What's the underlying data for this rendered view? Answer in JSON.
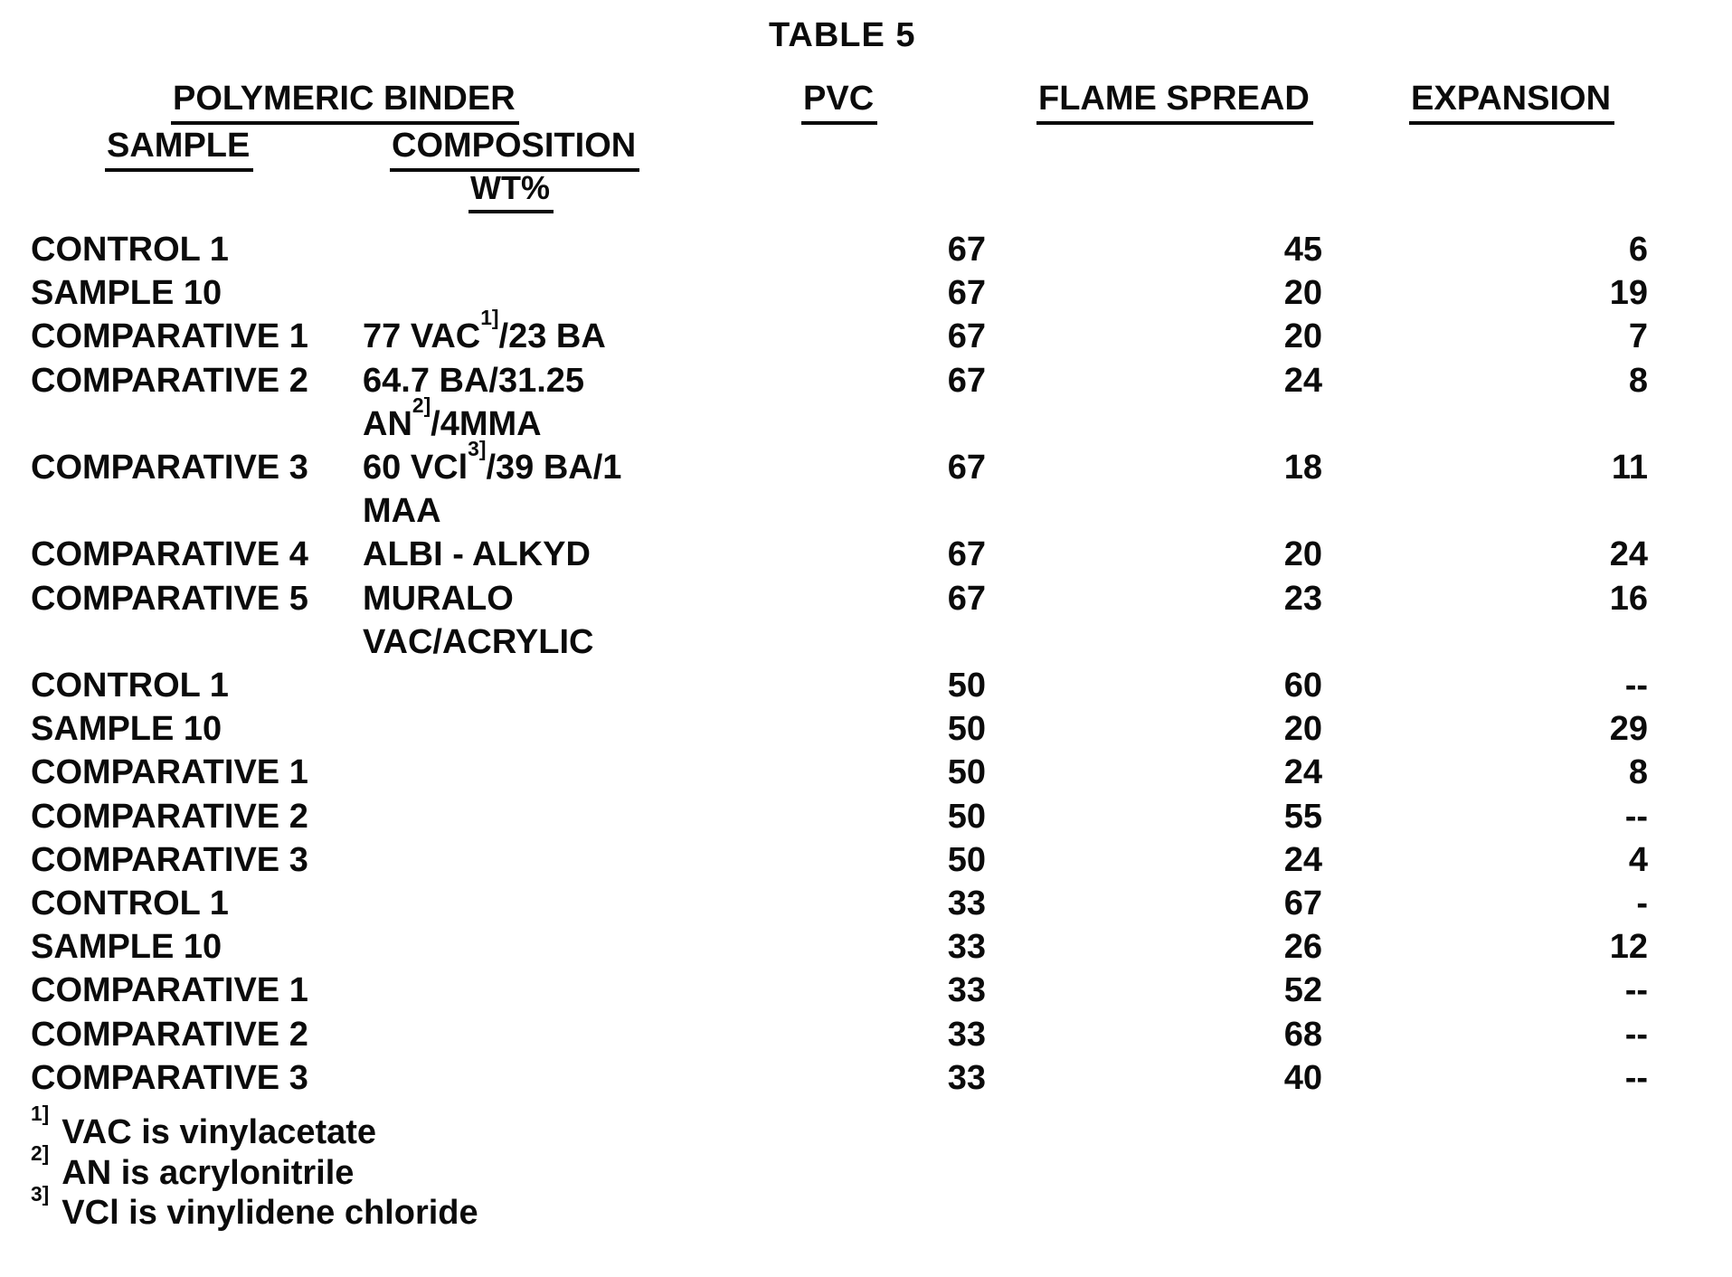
{
  "title": "TABLE 5",
  "table": {
    "group_header": "POLYMERIC BINDER",
    "columns": {
      "sample": "SAMPLE",
      "composition": "COMPOSITION",
      "composition_unit": "WT%",
      "pvc": "PVC",
      "flame_spread": "FLAME SPREAD",
      "expansion": "EXPANSION"
    },
    "rows": [
      {
        "sample": "CONTROL 1",
        "composition": [],
        "pvc": "67",
        "flame_spread": "45",
        "expansion": "6"
      },
      {
        "sample": "SAMPLE 10",
        "composition": [],
        "pvc": "67",
        "flame_spread": "20",
        "expansion": "19"
      },
      {
        "sample": "COMPARATIVE 1",
        "composition": [
          [
            {
              "text": "77 VAC"
            },
            {
              "sup": "1]"
            },
            {
              "text": "/23 BA"
            }
          ]
        ],
        "pvc": "67",
        "flame_spread": "20",
        "expansion": "7"
      },
      {
        "sample": "COMPARATIVE 2",
        "composition": [
          [
            {
              "text": "64.7 BA/31.25"
            }
          ],
          [
            {
              "text": "AN"
            },
            {
              "sup": "2]"
            },
            {
              "text": "/4MMA"
            }
          ]
        ],
        "pvc": "67",
        "flame_spread": "24",
        "expansion": "8"
      },
      {
        "sample": "COMPARATIVE 3",
        "composition": [
          [
            {
              "text": "60 VCl"
            },
            {
              "sup": "3]"
            },
            {
              "text": "/39 BA/1"
            }
          ],
          [
            {
              "text": "MAA"
            }
          ]
        ],
        "pvc": "67",
        "flame_spread": "18",
        "expansion": "11"
      },
      {
        "sample": "COMPARATIVE 4",
        "composition": [
          [
            {
              "text": "ALBI - ALKYD"
            }
          ]
        ],
        "pvc": "67",
        "flame_spread": "20",
        "expansion": "24"
      },
      {
        "sample": "COMPARATIVE 5",
        "composition": [
          [
            {
              "text": "MURALO"
            }
          ],
          [
            {
              "text": "VAC/ACRYLIC"
            }
          ]
        ],
        "pvc": "67",
        "flame_spread": "23",
        "expansion": "16"
      },
      {
        "sample": "CONTROL 1",
        "composition": [],
        "pvc": "50",
        "flame_spread": "60",
        "expansion": "--"
      },
      {
        "sample": "SAMPLE 10",
        "composition": [],
        "pvc": "50",
        "flame_spread": "20",
        "expansion": "29"
      },
      {
        "sample": "COMPARATIVE 1",
        "composition": [],
        "pvc": "50",
        "flame_spread": "24",
        "expansion": "8"
      },
      {
        "sample": "COMPARATIVE 2",
        "composition": [],
        "pvc": "50",
        "flame_spread": "55",
        "expansion": "--"
      },
      {
        "sample": "COMPARATIVE 3",
        "composition": [],
        "pvc": "50",
        "flame_spread": "24",
        "expansion": "4"
      },
      {
        "sample": "CONTROL 1",
        "composition": [],
        "pvc": "33",
        "flame_spread": "67",
        "expansion": "-"
      },
      {
        "sample": "SAMPLE 10",
        "composition": [],
        "pvc": "33",
        "flame_spread": "26",
        "expansion": "12"
      },
      {
        "sample": "COMPARATIVE 1",
        "composition": [],
        "pvc": "33",
        "flame_spread": "52",
        "expansion": "--"
      },
      {
        "sample": "COMPARATIVE 2",
        "composition": [],
        "pvc": "33",
        "flame_spread": "68",
        "expansion": "--"
      },
      {
        "sample": "COMPARATIVE 3",
        "composition": [],
        "pvc": "33",
        "flame_spread": "40",
        "expansion": "--"
      }
    ]
  },
  "footnotes": [
    {
      "marker": "1]",
      "text": "VAC is vinylacetate"
    },
    {
      "marker": "2]",
      "text": "AN is acrylonitrile"
    },
    {
      "marker": "3]",
      "text": "VCl is vinylidene chloride"
    }
  ],
  "colors": {
    "ink": "#0b0b0b",
    "paper": "#ffffff"
  }
}
